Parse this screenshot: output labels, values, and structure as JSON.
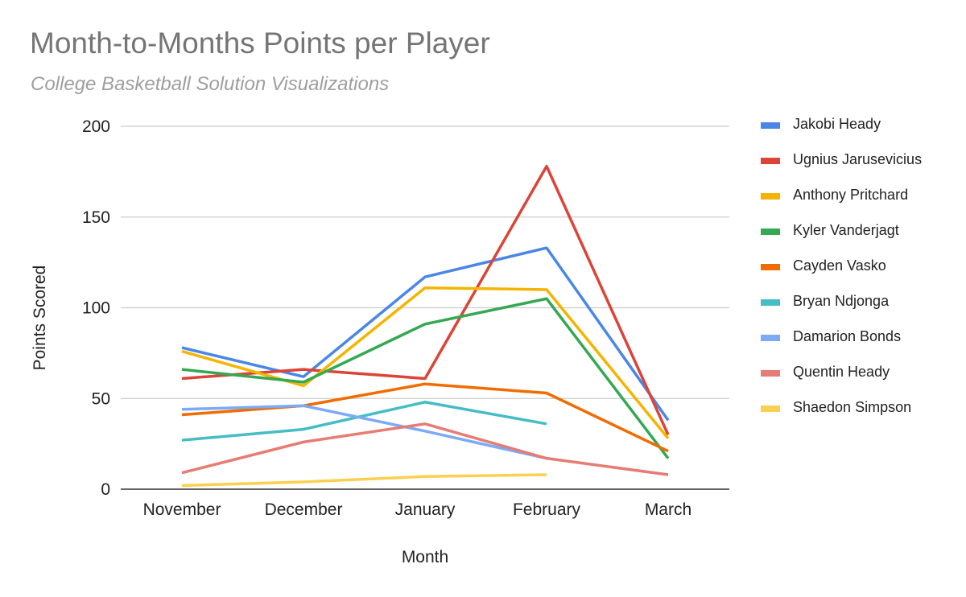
{
  "chart_data": {
    "type": "line",
    "title": "Month-to-Months Points per Player",
    "subtitle": "College Basketball Solution Visualizations",
    "xlabel": "Month",
    "ylabel": "Points Scored",
    "categories": [
      "November",
      "December",
      "January",
      "February",
      "March"
    ],
    "ylim": [
      0,
      200
    ],
    "yticks": [
      "0",
      "50",
      "100",
      "150",
      "200"
    ],
    "grid": true,
    "legend_position": "right",
    "series": [
      {
        "name": "Jakobi Heady",
        "color": "#4a86e8",
        "values": [
          78,
          62,
          117,
          133,
          38
        ]
      },
      {
        "name": "Ugnius Jarusevicius",
        "color": "#db4437",
        "values": [
          61,
          66,
          61,
          178,
          30
        ]
      },
      {
        "name": "Anthony Pritchard",
        "color": "#f4b400",
        "values": [
          76,
          57,
          111,
          110,
          28
        ]
      },
      {
        "name": "Kyler Vanderjagt",
        "color": "#34a853",
        "values": [
          66,
          59,
          91,
          105,
          17
        ]
      },
      {
        "name": "Cayden Vasko",
        "color": "#f06c00",
        "values": [
          41,
          46,
          58,
          53,
          21
        ]
      },
      {
        "name": "Bryan Ndjonga",
        "color": "#46bdc6",
        "values": [
          27,
          33,
          48,
          36,
          null
        ]
      },
      {
        "name": "Damarion Bonds",
        "color": "#7baaf7",
        "values": [
          44,
          46,
          32,
          17,
          null
        ]
      },
      {
        "name": "Quentin Heady",
        "color": "#e67c73",
        "values": [
          9,
          26,
          36,
          17,
          8
        ]
      },
      {
        "name": "Shaedon Simpson",
        "color": "#fcd04f",
        "values": [
          2,
          4,
          7,
          8,
          null
        ]
      }
    ]
  }
}
